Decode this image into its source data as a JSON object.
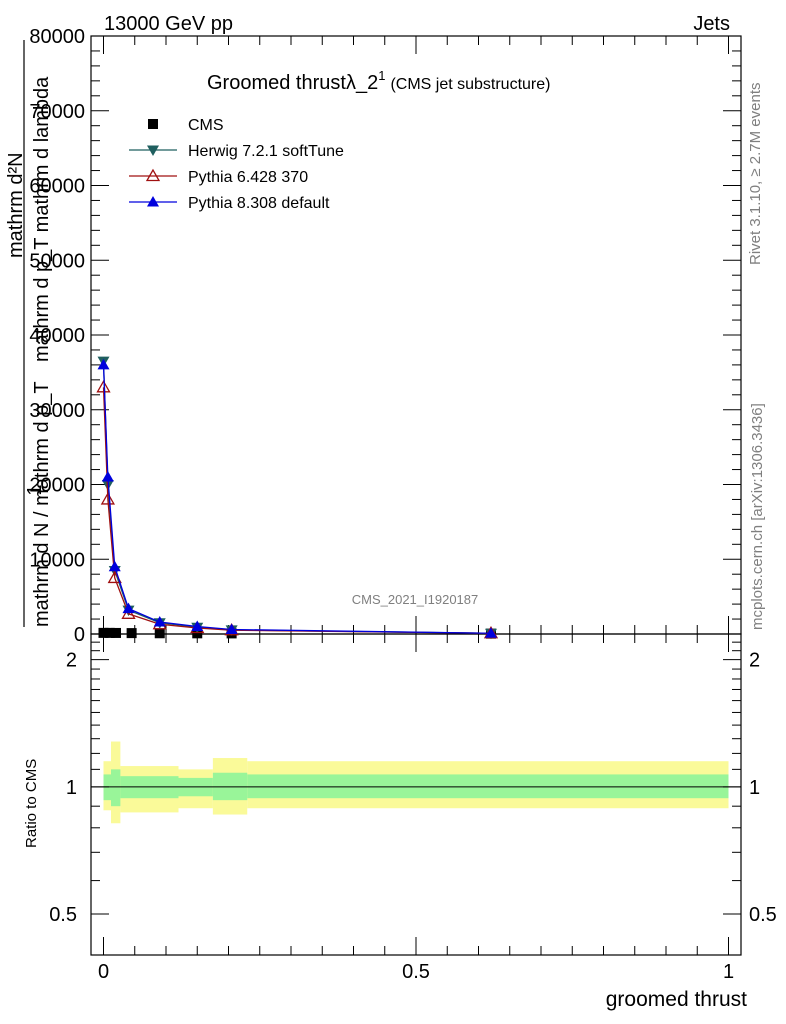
{
  "header": {
    "left": "13000 GeV pp",
    "right": "Jets"
  },
  "side_labels": {
    "rivet": "Rivet 3.1.10, ≥ 2.7M events",
    "mcplots": "mcplots.cern.ch [arXiv:1306.3436]"
  },
  "chart_data": {
    "type": "line",
    "title": "Groomed thrustλ_2",
    "title_sup": "1",
    "title_suffix": "(CMS jet substructure)",
    "watermark": "CMS_2021_I1920187",
    "xlabel": "groomed thrust",
    "ylabel_main_lines": [
      "mathrm d²N",
      "mathrm d p_T mathrm d lambda"
    ],
    "ylabel_main_prefix": "1",
    "ylabel_main_denominator": "mathrm d N / mathrm d p_T",
    "ylabel_ratio": "Ratio to CMS",
    "xlim": [
      -0.02,
      1.02
    ],
    "ylim_main": [
      0,
      80000
    ],
    "ylim_ratio": [
      0.4,
      2.3
    ],
    "x_ticks": [
      "0",
      "0.5",
      "1"
    ],
    "x_tick_values": [
      0,
      0.5,
      1
    ],
    "y_ticks_main": [
      "0",
      "10000",
      "20000",
      "30000",
      "40000",
      "50000",
      "60000",
      "70000",
      "80000"
    ],
    "y_tick_values_main": [
      0,
      10000,
      20000,
      30000,
      40000,
      50000,
      60000,
      70000,
      80000
    ],
    "y_ticks_ratio": [
      "0.5",
      "1",
      "2"
    ],
    "y_tick_values_ratio": [
      0.5,
      1,
      2
    ],
    "legend_position": "top-left",
    "series": [
      {
        "name": "CMS",
        "color": "#000000",
        "marker": "square",
        "x": [
          0.0,
          0.01,
          0.02,
          0.045,
          0.09,
          0.15,
          0.205,
          0.62
        ],
        "y": [
          150,
          150,
          140,
          120,
          100,
          90,
          80,
          50
        ]
      },
      {
        "name": "Herwig 7.2.1 softTune",
        "color": "#1f5f5f",
        "marker": "triangle-down",
        "x": [
          0.0,
          0.007,
          0.018,
          0.04,
          0.09,
          0.15,
          0.205,
          0.62
        ],
        "y": [
          36500,
          20000,
          8500,
          3200,
          1500,
          900,
          550,
          100
        ]
      },
      {
        "name": "Pythia 6.428 370",
        "color": "#a01010",
        "marker": "triangle-open",
        "x": [
          0.0,
          0.007,
          0.018,
          0.04,
          0.09,
          0.15,
          0.205,
          0.62
        ],
        "y": [
          33000,
          18000,
          7500,
          2700,
          1300,
          800,
          500,
          100
        ]
      },
      {
        "name": "Pythia 8.308 default",
        "color": "#0000dd",
        "marker": "triangle-up",
        "x": [
          0.0,
          0.007,
          0.018,
          0.04,
          0.09,
          0.15,
          0.205,
          0.62
        ],
        "y": [
          36000,
          21000,
          9000,
          3400,
          1600,
          1000,
          600,
          100
        ]
      }
    ],
    "ratio_band": [
      {
        "x0": 0.0,
        "x1": 0.012,
        "inner": [
          0.93,
          1.07
        ],
        "outer": [
          0.88,
          1.15
        ]
      },
      {
        "x0": 0.012,
        "x1": 0.027,
        "inner": [
          0.9,
          1.1
        ],
        "outer": [
          0.82,
          1.28
        ]
      },
      {
        "x0": 0.027,
        "x1": 0.12,
        "inner": [
          0.94,
          1.06
        ],
        "outer": [
          0.87,
          1.12
        ]
      },
      {
        "x0": 0.12,
        "x1": 0.175,
        "inner": [
          0.95,
          1.05
        ],
        "outer": [
          0.89,
          1.1
        ]
      },
      {
        "x0": 0.175,
        "x1": 0.23,
        "inner": [
          0.93,
          1.08
        ],
        "outer": [
          0.86,
          1.17
        ]
      },
      {
        "x0": 0.23,
        "x1": 1.0,
        "inner": [
          0.94,
          1.07
        ],
        "outer": [
          0.89,
          1.15
        ]
      }
    ],
    "band_colors": {
      "inner": "#99f599",
      "outer": "#fafa99"
    }
  }
}
